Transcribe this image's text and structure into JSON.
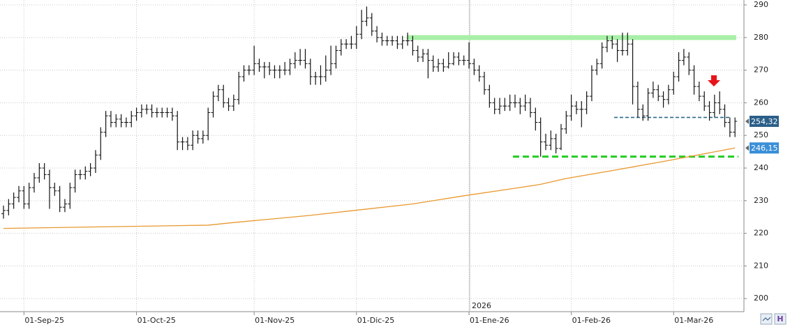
{
  "chart_data": {
    "type": "ohlc",
    "annotation": "2026",
    "categories": [
      null,
      null,
      null,
      null,
      "01-Sep-25",
      null,
      null,
      null,
      null,
      null,
      null,
      null,
      null,
      null,
      null,
      null,
      null,
      null,
      null,
      null,
      null,
      null,
      null,
      null,
      null,
      null,
      "01-Oct-25",
      null,
      null,
      null,
      null,
      null,
      null,
      null,
      null,
      null,
      null,
      null,
      null,
      null,
      null,
      null,
      null,
      null,
      null,
      null,
      null,
      null,
      null,
      "01-Nov-25",
      null,
      null,
      null,
      null,
      null,
      null,
      null,
      null,
      null,
      null,
      null,
      null,
      null,
      null,
      null,
      null,
      null,
      null,
      null,
      "01-Dic-25",
      null,
      null,
      null,
      null,
      null,
      null,
      null,
      null,
      null,
      null,
      null,
      null,
      null,
      null,
      null,
      null,
      null,
      null,
      null,
      null,
      null,
      "01-Ene-26",
      null,
      null,
      null,
      null,
      null,
      null,
      null,
      null,
      null,
      null,
      null,
      null,
      null,
      null,
      null,
      null,
      null,
      null,
      null,
      "01-Feb-26",
      null,
      null,
      null,
      null,
      null,
      null,
      null,
      null,
      null,
      null,
      null,
      null,
      null,
      null,
      null,
      null,
      null,
      null,
      null,
      "01-Mar-26",
      null,
      null,
      null,
      null,
      null,
      null,
      null,
      null,
      null,
      null,
      null,
      null
    ],
    "open": [
      226,
      227,
      229,
      231,
      233,
      229,
      234,
      237,
      240,
      238,
      234,
      233,
      228,
      229,
      234,
      238,
      238,
      239,
      240,
      244,
      251,
      256,
      254,
      255,
      254,
      254,
      256,
      257,
      258,
      258,
      257,
      257,
      257,
      257,
      256,
      248,
      248,
      247,
      250,
      249,
      250,
      257,
      262,
      264,
      260,
      259,
      261,
      268,
      270,
      270,
      272,
      271,
      271,
      270,
      270,
      270,
      270,
      272,
      273,
      273,
      272,
      268,
      268,
      268,
      270,
      272,
      276,
      278,
      278,
      278,
      281,
      285,
      286,
      282,
      280,
      279,
      279,
      279,
      278,
      279,
      279,
      276,
      274,
      275,
      273,
      271,
      272,
      271,
      272,
      274,
      273,
      273,
      272,
      270,
      268,
      264,
      260,
      258,
      259,
      259,
      260,
      260,
      259,
      260,
      257,
      254,
      248,
      247,
      249,
      246,
      252,
      256,
      259,
      258,
      258,
      262,
      270,
      272,
      277,
      279,
      278,
      276,
      276,
      278,
      265,
      258,
      256,
      263,
      264,
      262,
      261,
      264,
      268,
      273,
      274,
      270,
      265,
      262,
      259,
      257,
      260,
      258,
      254,
      251
    ],
    "high": [
      228.5,
      230.5,
      232.5,
      234.5,
      234.5,
      235.5,
      238.5,
      241.5,
      241.5,
      239.5,
      235.5,
      234.5,
      230.5,
      235.5,
      239.5,
      239.5,
      240.5,
      241.5,
      245.5,
      252.5,
      257.5,
      257.5,
      256.5,
      256.5,
      255.5,
      257.5,
      258.5,
      259.5,
      259.5,
      259.5,
      258.5,
      258.5,
      258.5,
      258.5,
      257.5,
      249.5,
      249.5,
      251.5,
      251.5,
      251.5,
      258.5,
      263.5,
      265.5,
      265.5,
      261.5,
      262.5,
      269.5,
      271.5,
      271.5,
      277.5,
      273.5,
      272.5,
      272.5,
      271.5,
      271.5,
      272.5,
      273.5,
      275.5,
      276.5,
      276.5,
      273.5,
      269.5,
      271.5,
      274.5,
      277.5,
      277.5,
      279.5,
      279.5,
      280.5,
      283.5,
      288.5,
      289.5,
      287.5,
      283.5,
      281.5,
      280.5,
      280.5,
      280.5,
      280.5,
      281.5,
      280.5,
      277.5,
      276.5,
      276.5,
      274.5,
      273.5,
      273.5,
      275.5,
      275.5,
      275.5,
      274.5,
      278.5,
      273.5,
      271.5,
      269.5,
      265.5,
      261.5,
      261.5,
      261.5,
      262.5,
      262.5,
      261.5,
      262.5,
      261.5,
      258.5,
      255.5,
      250.5,
      251.5,
      250.5,
      253.5,
      257.5,
      262.5,
      260.5,
      260.5,
      263.5,
      271.5,
      273.5,
      278.5,
      280.5,
      280.5,
      279.5,
      281.5,
      281.5,
      279.5,
      266.5,
      259.5,
      264.5,
      266.5,
      265.5,
      263.5,
      265.5,
      269.5,
      275.5,
      276.5,
      275.5,
      271.5,
      266.5,
      263.5,
      260.5,
      262.5,
      263.5,
      259.5,
      255.5,
      255.5
    ],
    "low": [
      224.5,
      225.5,
      227.5,
      229.5,
      227.5,
      227.5,
      232.5,
      235.5,
      236.5,
      227.5,
      231.5,
      226.5,
      226.5,
      227.5,
      232.5,
      236.5,
      236.5,
      237.5,
      238.5,
      242.5,
      249.5,
      252.5,
      252.5,
      252.5,
      252.5,
      252.5,
      254.5,
      255.5,
      256.5,
      255.5,
      255.5,
      255.5,
      255.5,
      254.5,
      245.5,
      245.5,
      245.5,
      245.5,
      247.5,
      247.5,
      248.5,
      255.5,
      260.5,
      258.5,
      257.5,
      257.5,
      259.5,
      266.5,
      268.5,
      268.5,
      269.5,
      267.5,
      268.5,
      267.5,
      267.5,
      268.5,
      268.5,
      270.5,
      271.5,
      270.5,
      265.5,
      265.5,
      265.5,
      266.5,
      268.5,
      270.5,
      274.5,
      276.5,
      276.5,
      276.5,
      279.5,
      283.5,
      280.5,
      278.5,
      277.5,
      277.5,
      277.5,
      276.5,
      276.5,
      277.5,
      274.5,
      272.5,
      272.5,
      267.5,
      269.5,
      269.5,
      269.5,
      270.5,
      271.5,
      271.5,
      271.5,
      270.5,
      268.5,
      266.5,
      262.5,
      258.5,
      256.5,
      256.5,
      257.5,
      257.5,
      258.5,
      256.5,
      257.5,
      255.5,
      251.5,
      243.5,
      245.5,
      245.5,
      244.5,
      245.5,
      250.5,
      254.5,
      256.5,
      252.5,
      256.5,
      260.5,
      268.5,
      270.5,
      275.5,
      276.5,
      272.5,
      274.5,
      274.5,
      259.5,
      255.5,
      254.5,
      254.5,
      261.5,
      260.5,
      258.5,
      259.5,
      262.5,
      266.5,
      271.5,
      268.5,
      262.5,
      260.5,
      257.5,
      254.5,
      255.5,
      256.5,
      252.5,
      249.5,
      249.5
    ],
    "close": [
      227,
      229,
      231,
      233,
      229,
      234,
      237,
      240,
      238,
      234,
      233,
      228,
      229,
      234,
      238,
      238,
      239,
      240,
      244,
      251,
      256,
      254,
      255,
      254,
      254,
      256,
      257,
      258,
      258,
      257,
      257,
      257,
      257,
      256,
      248,
      248,
      247,
      250,
      249,
      250,
      257,
      262,
      264,
      260,
      259,
      261,
      268,
      270,
      270,
      272,
      271,
      271,
      270,
      270,
      270,
      270,
      272,
      273,
      273,
      272,
      268,
      268,
      268,
      270,
      272,
      276,
      278,
      278,
      278,
      281,
      285,
      286,
      282,
      280,
      279,
      279,
      279,
      278,
      279,
      279,
      276,
      274,
      275,
      273,
      271,
      272,
      271,
      272,
      274,
      273,
      273,
      272,
      270,
      268,
      264,
      260,
      258,
      259,
      259,
      260,
      260,
      259,
      260,
      257,
      254,
      248,
      247,
      249,
      246,
      252,
      256,
      259,
      258,
      258,
      262,
      270,
      272,
      277,
      279,
      278,
      276,
      276,
      278,
      265,
      258,
      256,
      263,
      264,
      262,
      261,
      264,
      268,
      273,
      274,
      270,
      265,
      262,
      259,
      257,
      260,
      258,
      254,
      251,
      254.32
    ],
    "bar_color": "#111111",
    "moving_average": {
      "color": "#e8982e",
      "x": [
        0,
        20,
        40,
        45,
        60,
        80,
        90,
        100,
        105,
        110,
        120,
        130,
        143
      ],
      "values": [
        221.5,
        222,
        222.5,
        223.3,
        225.5,
        229,
        231.5,
        233.8,
        235,
        236.8,
        239.5,
        242.3,
        246.15
      ]
    },
    "levels": [
      {
        "value": 280,
        "color": "#a8f0a8",
        "style": "solid"
      },
      {
        "value": 255.5,
        "color": "#2b6a8a",
        "style": "dashed"
      },
      {
        "value": 243.5,
        "color": "#22cc22",
        "style": "dashed"
      }
    ],
    "price_labels": [
      {
        "value": 254.32,
        "label": "254,32",
        "color": "#2b5f8a"
      },
      {
        "value": 246.15,
        "label": "246,15",
        "color": "#3a8fd8"
      }
    ],
    "ylim": [
      196.2,
      291.5
    ],
    "yticks": [
      200,
      210,
      220,
      230,
      240,
      250,
      260,
      270,
      280,
      290
    ],
    "grid": true
  }
}
